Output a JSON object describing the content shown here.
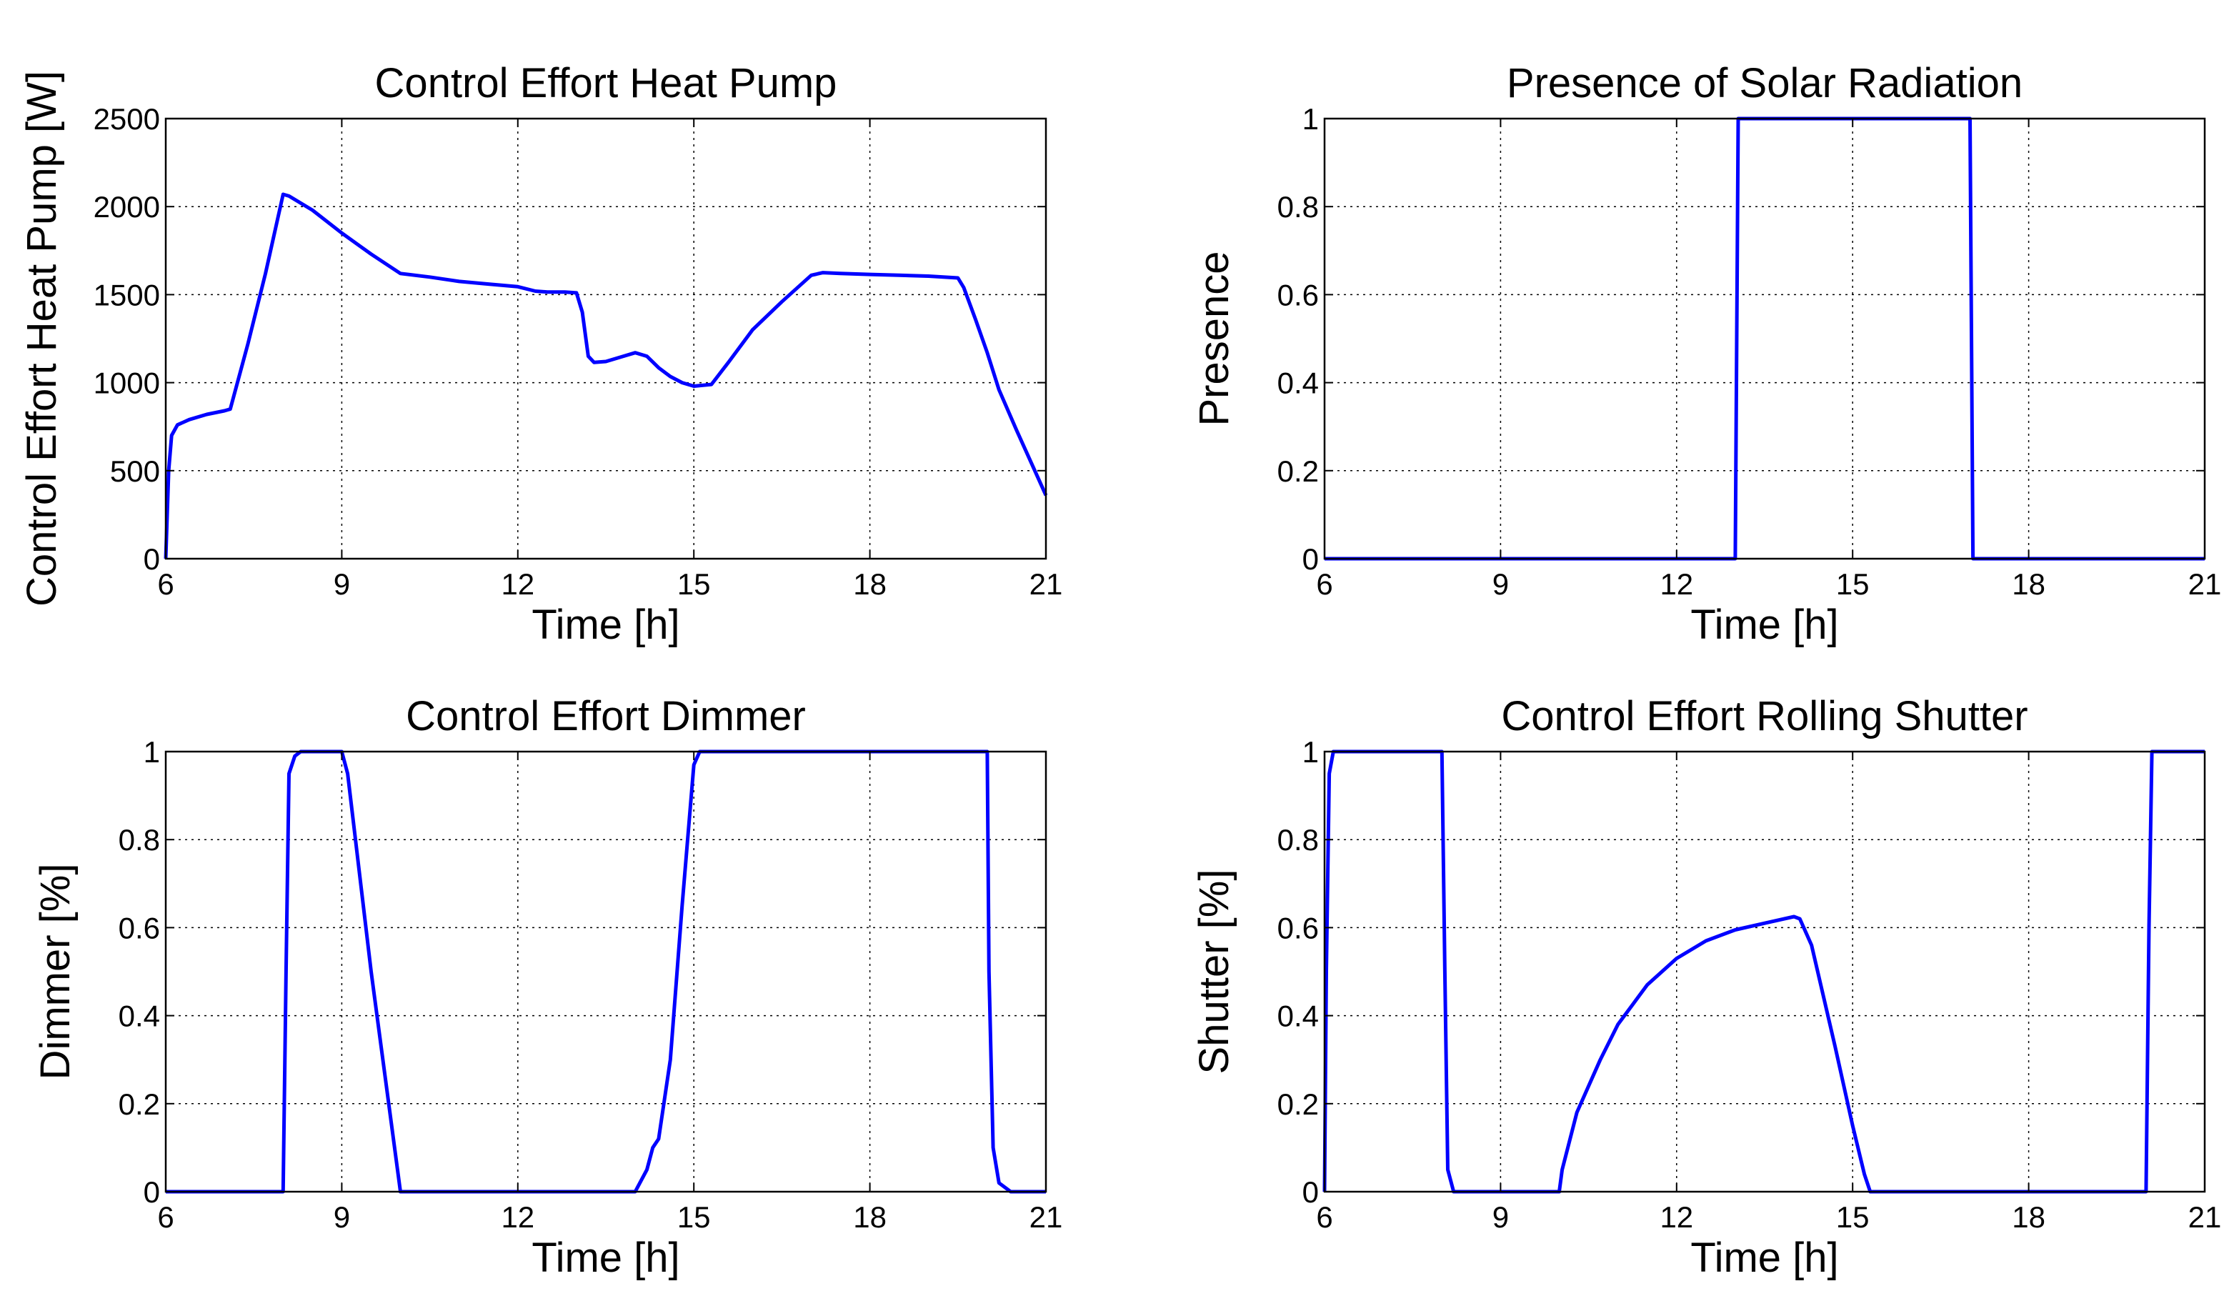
{
  "chart_data": [
    {
      "type": "line",
      "title": "Control Effort Heat Pump",
      "xlabel": "Time [h]",
      "ylabel": "Control Effort Heat Pump [W]",
      "xlim": [
        6,
        21
      ],
      "ylim": [
        0,
        2500
      ],
      "xticks": [
        6,
        9,
        12,
        15,
        18,
        21
      ],
      "yticks": [
        0,
        500,
        1000,
        1500,
        2000,
        2500
      ],
      "xtick_labels": [
        "6",
        "9",
        "12",
        "15",
        "18",
        "21"
      ],
      "ytick_labels": [
        "0",
        "500",
        "1000",
        "1500",
        "2000",
        "2500"
      ],
      "grid": true,
      "series": [
        {
          "name": "heat pump",
          "color": "#0000ff",
          "x": [
            6,
            6.05,
            6.1,
            6.2,
            6.4,
            6.7,
            7.0,
            7.1,
            7.4,
            7.7,
            8.0,
            8.1,
            8.5,
            9.0,
            9.5,
            10.0,
            10.5,
            11.0,
            11.5,
            12.0,
            12.3,
            12.5,
            12.8,
            13.0,
            13.1,
            13.2,
            13.3,
            13.5,
            13.8,
            14.0,
            14.2,
            14.4,
            14.6,
            14.8,
            15.0,
            15.3,
            15.6,
            16.0,
            16.5,
            17.0,
            17.2,
            17.5,
            18.0,
            18.5,
            19.0,
            19.5,
            19.6,
            19.8,
            20.0,
            20.2,
            20.5,
            21.0
          ],
          "y": [
            0,
            500,
            700,
            760,
            790,
            820,
            840,
            850,
            1220,
            1620,
            2070,
            2060,
            1980,
            1850,
            1730,
            1620,
            1600,
            1575,
            1560,
            1545,
            1520,
            1515,
            1515,
            1510,
            1400,
            1150,
            1115,
            1120,
            1150,
            1170,
            1150,
            1085,
            1035,
            1000,
            980,
            990,
            1120,
            1300,
            1460,
            1610,
            1625,
            1620,
            1615,
            1610,
            1605,
            1595,
            1540,
            1360,
            1170,
            960,
            730,
            360
          ]
        }
      ]
    },
    {
      "type": "line",
      "title": "Presence of Solar Radiation",
      "xlabel": "Time [h]",
      "ylabel": "Presence",
      "xlim": [
        6,
        21
      ],
      "ylim": [
        0,
        1
      ],
      "xticks": [
        6,
        9,
        12,
        15,
        18,
        21
      ],
      "yticks": [
        0,
        0.2,
        0.4,
        0.6,
        0.8,
        1
      ],
      "xtick_labels": [
        "6",
        "9",
        "12",
        "15",
        "18",
        "21"
      ],
      "ytick_labels": [
        "0",
        "0.2",
        "0.4",
        "0.6",
        "0.8",
        "1"
      ],
      "grid": true,
      "series": [
        {
          "name": "presence",
          "color": "#0000ff",
          "x": [
            6,
            13.0,
            13.05,
            17.0,
            17.05,
            21
          ],
          "y": [
            0,
            0,
            1,
            1,
            0,
            0
          ]
        }
      ]
    },
    {
      "type": "line",
      "title": "Control Effort Dimmer",
      "xlabel": "Time [h]",
      "ylabel": "Dimmer [%]",
      "xlim": [
        6,
        21
      ],
      "ylim": [
        0,
        1
      ],
      "xticks": [
        6,
        9,
        12,
        15,
        18,
        21
      ],
      "yticks": [
        0,
        0.2,
        0.4,
        0.6,
        0.8,
        1
      ],
      "xtick_labels": [
        "6",
        "9",
        "12",
        "15",
        "18",
        "21"
      ],
      "ytick_labels": [
        "0",
        "0.2",
        "0.4",
        "0.6",
        "0.8",
        "1"
      ],
      "grid": true,
      "series": [
        {
          "name": "dimmer",
          "color": "#0000ff",
          "x": [
            6,
            8.0,
            8.05,
            8.1,
            8.2,
            8.3,
            9.0,
            9.1,
            9.5,
            10.0,
            14.0,
            14.2,
            14.3,
            14.4,
            14.6,
            14.8,
            15.0,
            15.1,
            20.0,
            20.03,
            20.1,
            20.2,
            20.4,
            21
          ],
          "y": [
            0,
            0,
            0.5,
            0.95,
            0.99,
            1,
            1,
            0.95,
            0.5,
            0,
            0,
            0.05,
            0.1,
            0.12,
            0.3,
            0.65,
            0.97,
            1,
            1,
            0.5,
            0.1,
            0.02,
            0,
            0
          ]
        }
      ]
    },
    {
      "type": "line",
      "title": "Control Effort Rolling Shutter",
      "xlabel": "Time [h]",
      "ylabel": "Shutter [%]",
      "xlim": [
        6,
        21
      ],
      "ylim": [
        0,
        1
      ],
      "xticks": [
        6,
        9,
        12,
        15,
        18,
        21
      ],
      "yticks": [
        0,
        0.2,
        0.4,
        0.6,
        0.8,
        1
      ],
      "xtick_labels": [
        "6",
        "9",
        "12",
        "15",
        "18",
        "21"
      ],
      "ytick_labels": [
        "0",
        "0.2",
        "0.4",
        "0.6",
        "0.8",
        "1"
      ],
      "grid": true,
      "series": [
        {
          "name": "shutter",
          "color": "#0000ff",
          "x": [
            6,
            6.03,
            6.08,
            6.15,
            8.0,
            8.05,
            8.1,
            8.2,
            10.0,
            10.05,
            10.3,
            10.7,
            11.0,
            11.5,
            12.0,
            12.5,
            13.0,
            13.5,
            14.0,
            14.1,
            14.3,
            14.7,
            15.0,
            15.2,
            15.3,
            20.0,
            20.05,
            20.1,
            21
          ],
          "y": [
            0,
            0.5,
            0.95,
            1,
            1,
            0.5,
            0.05,
            0,
            0,
            0.05,
            0.18,
            0.3,
            0.38,
            0.47,
            0.53,
            0.57,
            0.595,
            0.61,
            0.625,
            0.62,
            0.56,
            0.33,
            0.15,
            0.04,
            0,
            0,
            0.6,
            1,
            1
          ]
        }
      ]
    }
  ]
}
